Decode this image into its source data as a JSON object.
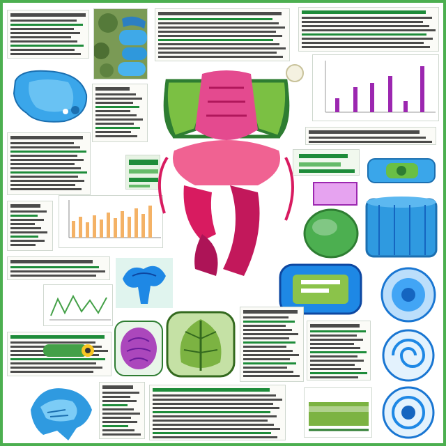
{
  "poster": {
    "colors": {
      "frame": "#4caf50",
      "text": "#2b2b2b",
      "green_accent": "#1e8c3a",
      "magenta": "#d81b60",
      "blue": "#2196f3",
      "purple": "#9c27b0",
      "orange_bar": "#f4b266"
    },
    "figures": [
      "leafy-blue-specimen",
      "blue-shell-specimen",
      "central-pink-organism",
      "bar-chart-small-magenta",
      "bar-chart-orange",
      "wave-line-chart",
      "blue-coral-specimen",
      "purple-seed-specimen",
      "green-leaf-cross-section",
      "green-sphere",
      "blue-cylinder",
      "blue-capsule-top",
      "blue-spiral-specimens",
      "blue-claw-specimen",
      "green-bar-panel"
    ]
  }
}
